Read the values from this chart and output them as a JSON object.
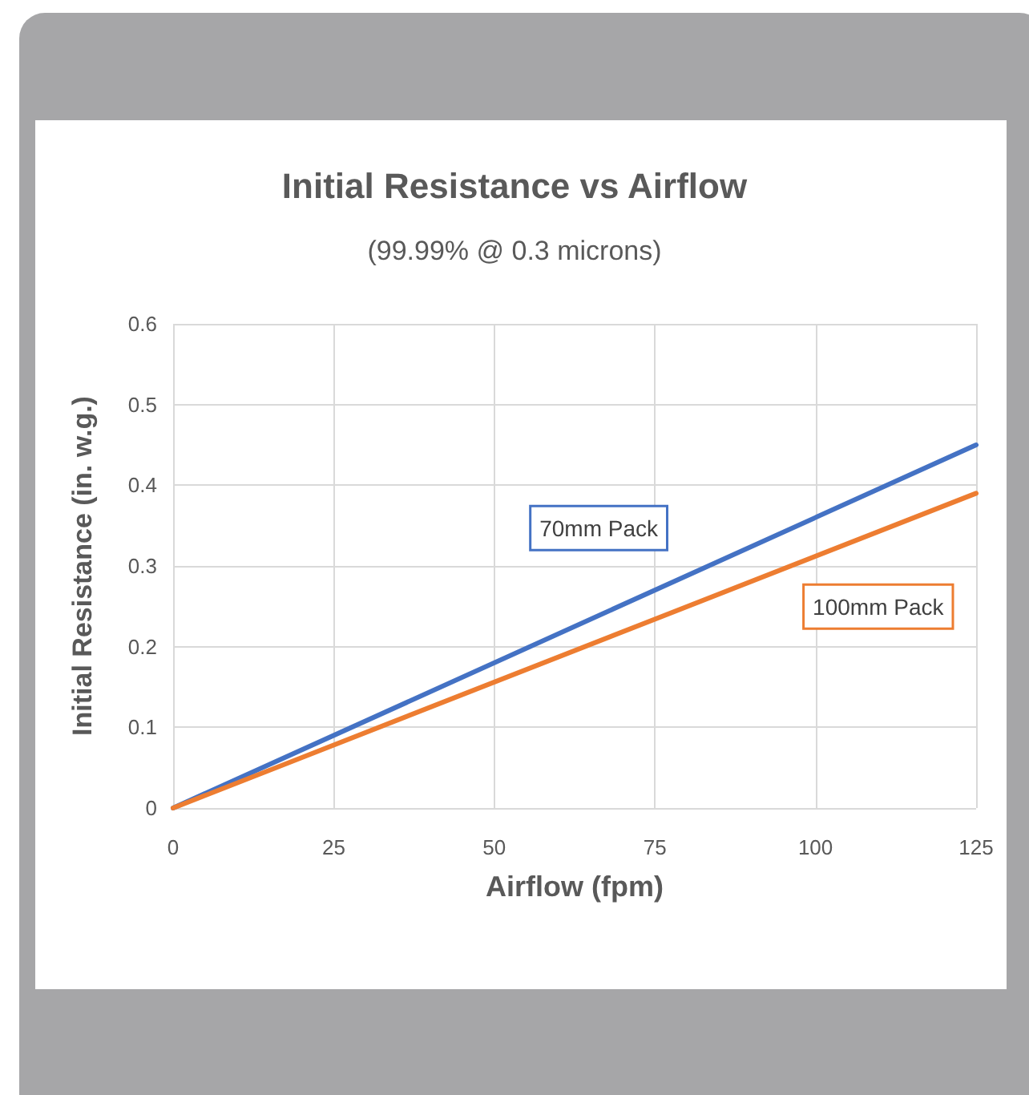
{
  "chart_data": {
    "type": "line",
    "title": "Initial Resistance vs Airflow",
    "subtitle": "(99.99% @ 0.3 microns)",
    "xlabel": "Airflow (fpm)",
    "ylabel": "Initial Resistance (in. w.g.)",
    "x": [
      0,
      125
    ],
    "series": [
      {
        "name": "70mm Pack",
        "color": "#4472c4",
        "values": [
          0,
          0.45
        ]
      },
      {
        "name": "100mm Pack",
        "color": "#ed7d31",
        "values": [
          0,
          0.39
        ]
      }
    ],
    "xlim": [
      0,
      125
    ],
    "xticks": [
      0,
      25,
      50,
      75,
      100,
      125
    ],
    "ylim": [
      0,
      0.6
    ],
    "yticks": [
      0,
      0.1,
      0.2,
      0.3,
      0.4,
      0.5,
      0.6
    ],
    "grid": true,
    "marker": "none",
    "line_style": "solid",
    "legend": false
  }
}
